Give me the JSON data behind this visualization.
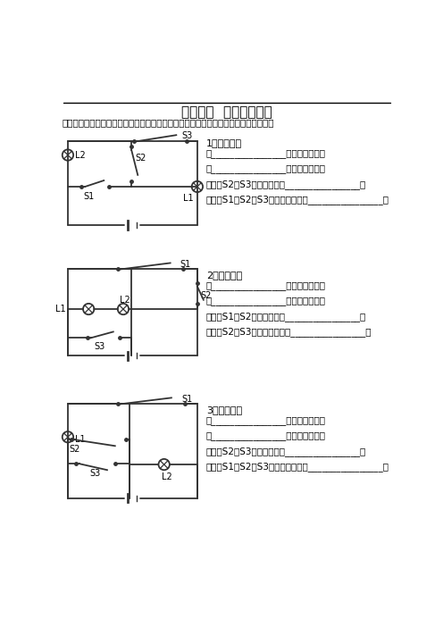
{
  "title": "等效电路  电路分析简化",
  "subtitle": "一、看电路图，按要求完成分析填空，并尝试画出各小题内各种状态下的简化电路图：",
  "background": "#ffffff",
  "text_color": "#000000",
  "circuit_color": "#333333",
  "q1_label": "1、如左图：",
  "q1_lines": [
    "当________________时，两灯串联；",
    "当________________时，两灯并联；",
    "当开关S2、S3同时闭合时，________________；",
    "当开关S1、S2、S3都闭合时，电路________________。"
  ],
  "q2_label": "2、如左图：",
  "q2_lines": [
    "当________________时，两灯串联；",
    "当________________时，两灯并联；",
    "当开关S1、S2同时闭合时，________________；",
    "当开关S2、S3都闭合时，电路________________。"
  ],
  "q3_label": "3、如左图：",
  "q3_lines": [
    "当________________时，两灯串联；",
    "当________________时，两灯并联；",
    "当开关S2、S3同时闭合时，________________；",
    "当开关S1、S2、S3都闭合时，电路________________。"
  ]
}
